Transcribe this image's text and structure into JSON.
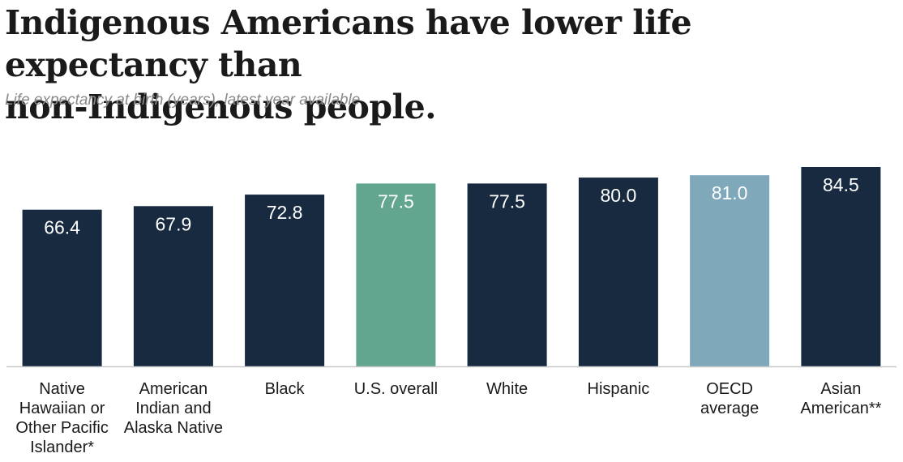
{
  "chart_data": {
    "type": "bar",
    "title": "Indigenous Americans have lower life expectancy than non-Indigenous people.",
    "title_lines": [
      "Indigenous Americans have lower life expectancy than",
      "non-Indigenous people."
    ],
    "subtitle": "Life expectancy at birth (years), latest year available",
    "categories": [
      "Native Hawaiian or Other Pacific Islander*",
      "American Indian and Alaska Native",
      "Black",
      "U.S. overall",
      "White",
      "Hispanic",
      "OECD average",
      "Asian American**"
    ],
    "category_lines": [
      [
        "Native",
        "Hawaiian or",
        "Other Pacific",
        "Islander*"
      ],
      [
        "American",
        "Indian and",
        "Alaska Native"
      ],
      [
        "Black"
      ],
      [
        "U.S. overall"
      ],
      [
        "White"
      ],
      [
        "Hispanic"
      ],
      [
        "OECD",
        "average"
      ],
      [
        "Asian",
        "American**"
      ]
    ],
    "values": [
      66.4,
      67.9,
      72.8,
      77.5,
      77.5,
      80.0,
      81.0,
      84.5
    ],
    "value_labels": [
      "66.4",
      "67.9",
      "72.8",
      "77.5",
      "77.5",
      "80.0",
      "81.0",
      "84.5"
    ],
    "colors": [
      "#172a40",
      "#172a40",
      "#172a40",
      "#63a68f",
      "#172a40",
      "#172a40",
      "#7fa8ba",
      "#172a40"
    ],
    "xlabel": "",
    "ylabel": "",
    "ylim": [
      0,
      84.5
    ],
    "grid": false,
    "legend": "none"
  }
}
